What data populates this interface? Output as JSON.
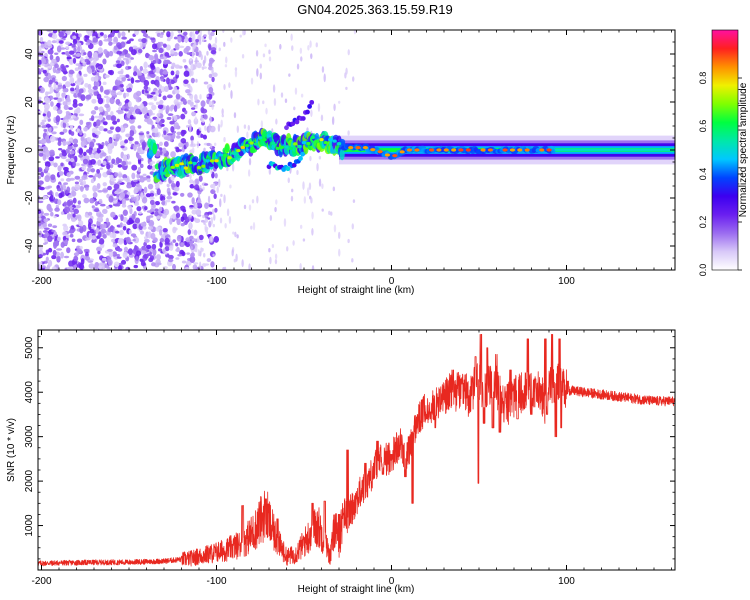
{
  "figure_title": "GN04.2025.363.15.59.R19",
  "chart_data": [
    {
      "type": "heatmap",
      "title": "GN04.2025.363.15.59.R19",
      "xlabel": "Height of straight line (km)",
      "ylabel": "Frequency (Hz)",
      "xlim": [
        -202,
        162
      ],
      "ylim": [
        -50,
        50
      ],
      "xticks": [
        -200,
        -100,
        0,
        100
      ],
      "yticks": [
        -40,
        -20,
        0,
        20,
        40
      ],
      "colorbar": {
        "label": "Normalized spectral amplitude",
        "range": [
          0,
          1
        ],
        "ticks": [
          0.0,
          0.2,
          0.4,
          0.6,
          0.8
        ],
        "colors": [
          "#ffffff",
          "#d8c8f8",
          "#9b6cf0",
          "#6a1ff0",
          "#3c00f0",
          "#0044ff",
          "#00c8ff",
          "#00e8a8",
          "#00ff40",
          "#80ff00",
          "#f0f000",
          "#ff9000",
          "#ff2020",
          "#ff10a0"
        ]
      },
      "features": [
        {
          "name": "noise-region",
          "x_range": [
            -202,
            -115
          ],
          "freq_range": [
            -50,
            50
          ],
          "amplitude": 0.2
        },
        {
          "name": "diffuse-fringe",
          "x_range": [
            -115,
            -20
          ],
          "freq_range": [
            -50,
            50
          ],
          "amplitude": 0.05
        },
        {
          "name": "doppler-trace",
          "points": [
            [
              -135,
              -10
            ],
            [
              -125,
              -7
            ],
            [
              -110,
              -6
            ],
            [
              -100,
              -4
            ],
            [
              -90,
              -1
            ],
            [
              -80,
              2
            ],
            [
              -72,
              6
            ],
            [
              -65,
              2
            ],
            [
              -55,
              2
            ],
            [
              -45,
              4
            ],
            [
              -35,
              3
            ],
            [
              -28,
              1
            ],
            [
              -15,
              1
            ],
            [
              -5,
              -1
            ],
            [
              0,
              -3
            ],
            [
              3,
              -2
            ],
            [
              8,
              0
            ],
            [
              20,
              0
            ],
            [
              40,
              0
            ],
            [
              60,
              0
            ],
            [
              80,
              0
            ],
            [
              93,
              0
            ],
            [
              162,
              0
            ]
          ],
          "amplitude": 0.85
        },
        {
          "name": "secondary-branch",
          "points": [
            [
              -70,
              -6
            ],
            [
              -60,
              -8
            ],
            [
              -55,
              -5
            ],
            [
              -50,
              -2
            ]
          ],
          "amplitude": 0.45
        },
        {
          "name": "upward-spur",
          "points": [
            [
              -60,
              10
            ],
            [
              -50,
              14
            ],
            [
              -45,
              20
            ]
          ],
          "amplitude": 0.3
        },
        {
          "name": "steady-band",
          "x_range": [
            93,
            162
          ],
          "center": 0,
          "amplitude": 0.45
        }
      ]
    },
    {
      "type": "line",
      "xlabel": "Height of straight line (km)",
      "ylabel": "SNR (10 * v/v)",
      "xlim": [
        -202,
        162
      ],
      "ylim": [
        0,
        5400
      ],
      "xticks": [
        -200,
        -100,
        0,
        100
      ],
      "yticks": [
        1000,
        2000,
        3000,
        4000,
        5000
      ],
      "series": [
        {
          "name": "SNR",
          "color": "#e82820",
          "x": [
            -202,
            -190,
            -170,
            -150,
            -130,
            -115,
            -105,
            -95,
            -85,
            -78,
            -72,
            -66,
            -60,
            -55,
            -50,
            -45,
            -42,
            -38,
            -35,
            -32,
            -30,
            -28,
            -25,
            -20,
            -15,
            -12,
            -8,
            -5,
            -2,
            0,
            5,
            8,
            12,
            15,
            20,
            25,
            30,
            35,
            40,
            45,
            48,
            50,
            52,
            55,
            60,
            65,
            70,
            75,
            80,
            85,
            88,
            90,
            92,
            95,
            100,
            110,
            120,
            130,
            140,
            150,
            162
          ],
          "y": [
            150,
            160,
            170,
            175,
            200,
            260,
            350,
            450,
            600,
            900,
            1300,
            700,
            300,
            350,
            600,
            900,
            1000,
            650,
            300,
            1100,
            300,
            1300,
            1200,
            1600,
            1900,
            2100,
            2450,
            2500,
            2500,
            2550,
            2900,
            2400,
            3000,
            3350,
            3650,
            3700,
            3900,
            4000,
            4050,
            3900,
            4150,
            4300,
            3800,
            4200,
            4100,
            3700,
            3900,
            4000,
            4050,
            4000,
            3700,
            4150,
            4200,
            4250,
            4050,
            4000,
            3950,
            3900,
            3850,
            3800,
            3800
          ],
          "spikes": [
            [
              -85,
              1450
            ],
            [
              -72,
              1600
            ],
            [
              -65,
              1150
            ],
            [
              -45,
              1500
            ],
            [
              -38,
              1550
            ],
            [
              -30,
              1250
            ],
            [
              -25,
              2700
            ],
            [
              -15,
              2400
            ],
            [
              -8,
              2900
            ],
            [
              -5,
              2150
            ],
            [
              0,
              2600
            ],
            [
              8,
              2100
            ],
            [
              10,
              3000
            ],
            [
              12,
              1500
            ],
            [
              20,
              3400
            ],
            [
              25,
              3200
            ],
            [
              35,
              4500
            ],
            [
              40,
              4300
            ],
            [
              48,
              4800
            ],
            [
              50,
              1950
            ],
            [
              51,
              5300
            ],
            [
              53,
              3300
            ],
            [
              55,
              5000
            ],
            [
              58,
              3200
            ],
            [
              60,
              4850
            ],
            [
              62,
              3100
            ],
            [
              68,
              4500
            ],
            [
              72,
              3400
            ],
            [
              78,
              5200
            ],
            [
              80,
              3500
            ],
            [
              82,
              4300
            ],
            [
              88,
              5200
            ],
            [
              89,
              3500
            ],
            [
              92,
              5300
            ],
            [
              94,
              3000
            ],
            [
              96,
              5200
            ],
            [
              97,
              3200
            ],
            [
              101,
              4250
            ]
          ]
        }
      ]
    }
  ]
}
